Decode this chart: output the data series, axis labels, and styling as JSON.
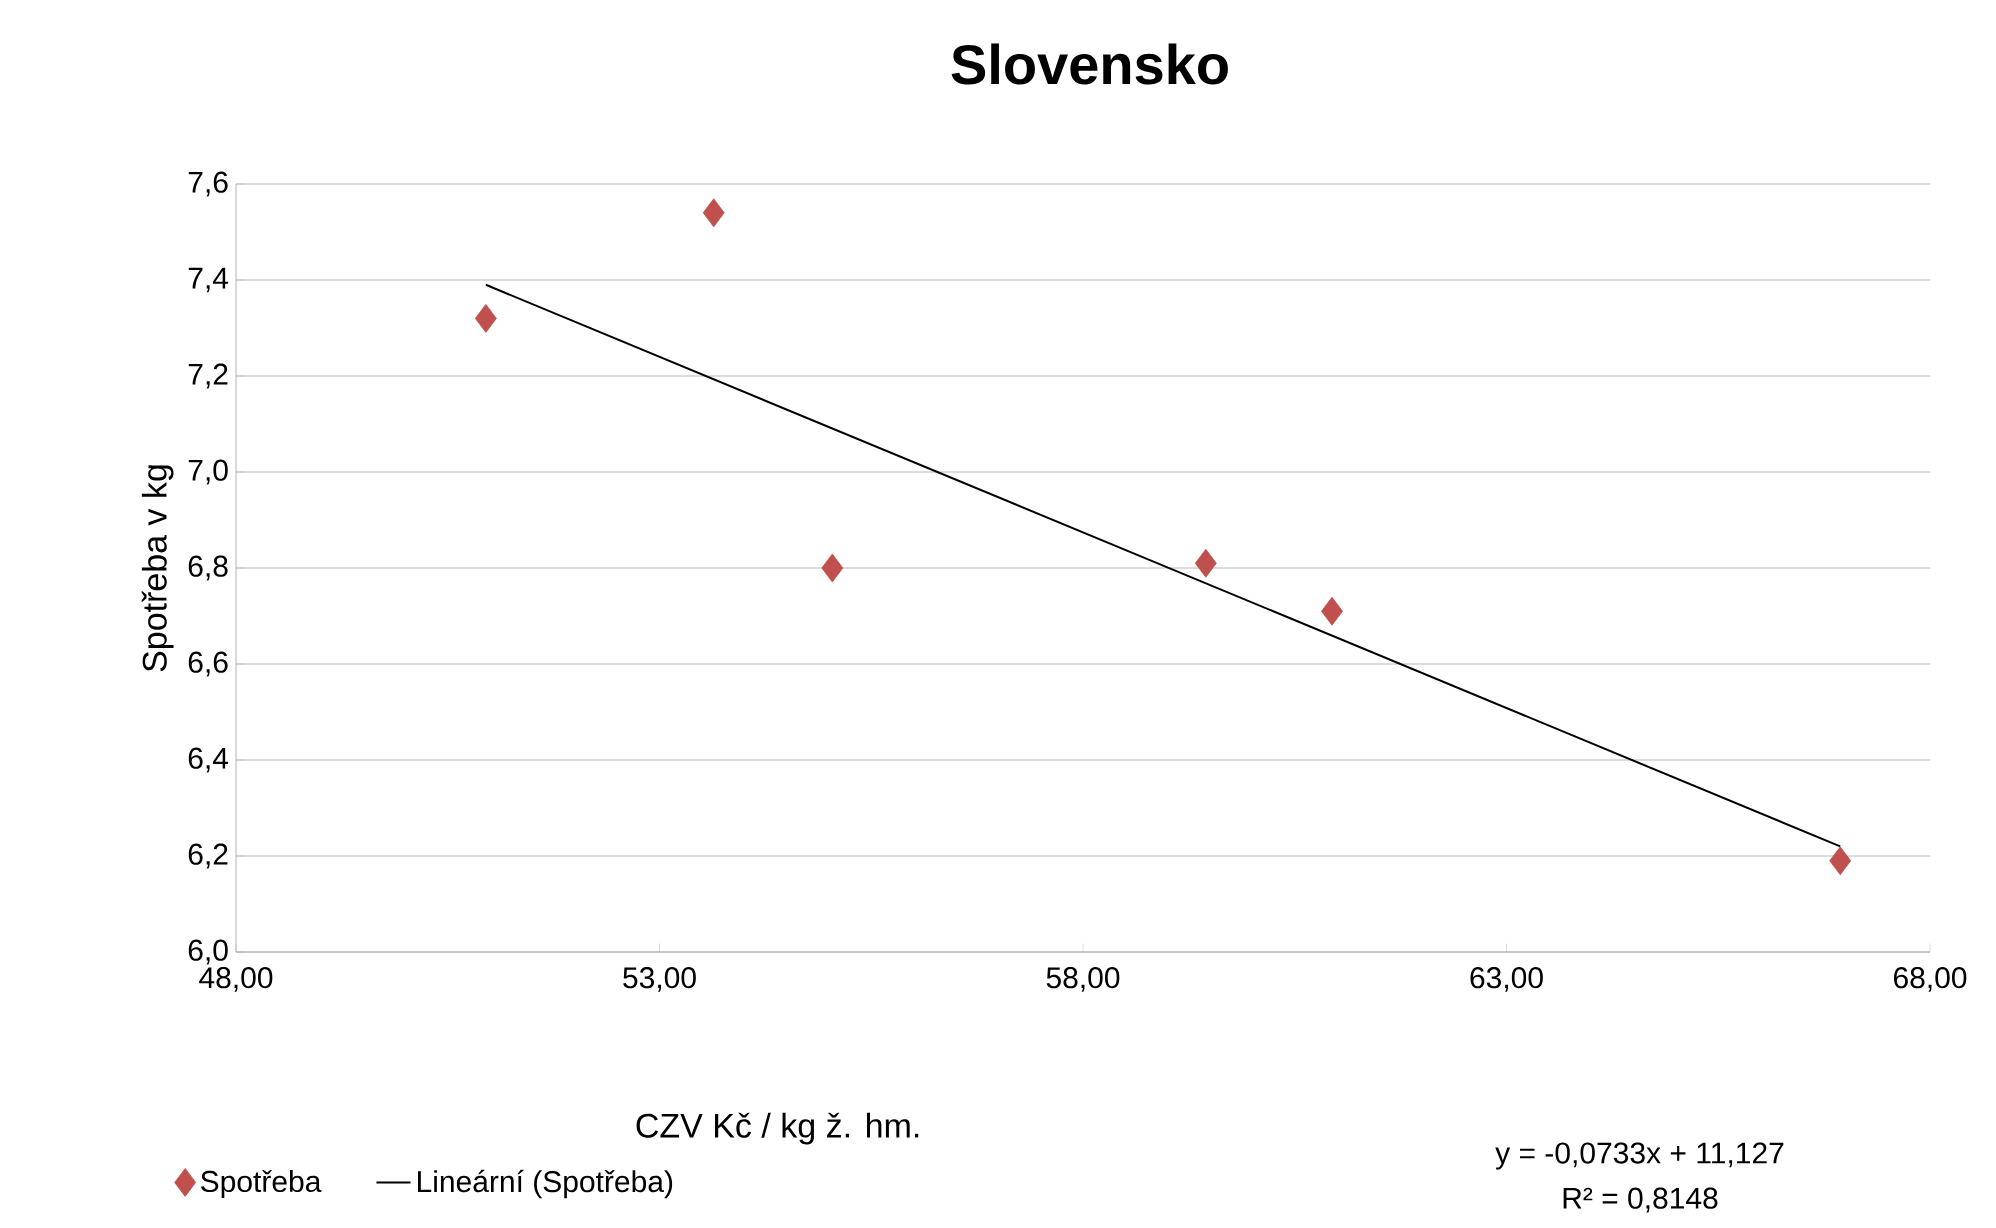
{
  "chart_data": {
    "type": "scatter",
    "title": "Slovensko",
    "xlabel": "CZV Kč / kg ž. hm.",
    "ylabel": "Spotřeba v kg",
    "series": [
      {
        "name": "Spotřeba",
        "color": "#c0504d",
        "marker": "diamond",
        "x": [
          50.95,
          53.64,
          55.04,
          59.45,
          60.94,
          66.94
        ],
        "values": [
          7.32,
          7.54,
          6.8,
          6.81,
          6.71,
          6.19
        ]
      },
      {
        "name": "Lineární (Spotřeba)",
        "type": "line",
        "color": "#000000",
        "line_style": "solid",
        "x": [
          50.95,
          66.94
        ],
        "values": [
          7.39,
          6.22
        ]
      }
    ],
    "xlim": [
      48,
      68
    ],
    "xticks": [
      {
        "value": 48,
        "label": "48,00"
      },
      {
        "value": 53,
        "label": "53,00"
      },
      {
        "value": 58,
        "label": "58,00"
      },
      {
        "value": 63,
        "label": "63,00"
      },
      {
        "value": 68,
        "label": "68,00"
      }
    ],
    "ylim": [
      6.0,
      7.6
    ],
    "yticks": [
      {
        "value": 6.0,
        "label": "6,0"
      },
      {
        "value": 6.2,
        "label": "6,2"
      },
      {
        "value": 6.4,
        "label": "6,4"
      },
      {
        "value": 6.6,
        "label": "6,6"
      },
      {
        "value": 6.8,
        "label": "6,8"
      },
      {
        "value": 7.0,
        "label": "7,0"
      },
      {
        "value": 7.2,
        "label": "7,2"
      },
      {
        "value": 7.4,
        "label": "7,4"
      },
      {
        "value": 7.6,
        "label": "7,6"
      }
    ],
    "grid": "y",
    "legend": "bottom",
    "annotations": [
      "y = -0,0733x + 11,127",
      "R² = 0,8148"
    ]
  }
}
